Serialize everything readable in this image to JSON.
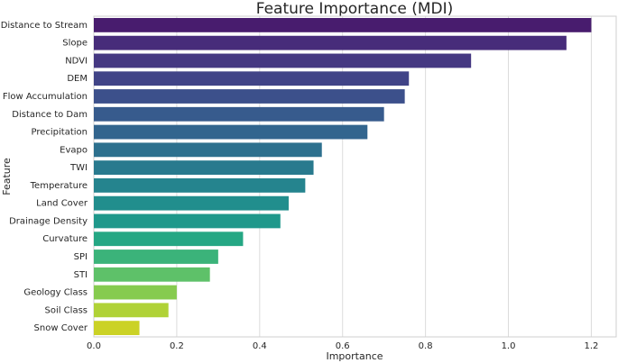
{
  "chart_data": {
    "type": "barh",
    "title": "Feature Importance (MDI)",
    "x_label": "Importance",
    "y_label": "Feature",
    "categories": [
      "Distance to Stream",
      "Slope",
      "NDVI",
      "DEM",
      "Flow Accumulation",
      "Distance to Dam",
      "Precipitation",
      "Evapo",
      "TWI",
      "Temperature",
      "Land Cover",
      "Drainage Density",
      "Curvature",
      "SPI",
      "STI",
      "Geology Class",
      "Soil Class",
      "Snow Cover"
    ],
    "values": [
      1.2,
      1.14,
      0.91,
      0.76,
      0.75,
      0.7,
      0.66,
      0.55,
      0.53,
      0.51,
      0.47,
      0.45,
      0.36,
      0.3,
      0.28,
      0.2,
      0.18,
      0.11
    ],
    "colors": [
      "#481c6e",
      "#472c7a",
      "#453882",
      "#414487",
      "#3c508b",
      "#375b8d",
      "#32658e",
      "#2d708e",
      "#297a8e",
      "#25848e",
      "#218e8d",
      "#1f988b",
      "#25a784",
      "#3bb37a",
      "#5ec169",
      "#86cb4f",
      "#b0d237",
      "#cbd226"
    ],
    "xlim": [
      0,
      1.26
    ],
    "xticks": [
      {
        "value": 0,
        "label": "0.0"
      },
      0.2,
      0.4,
      0.6,
      0.8,
      {
        "value": 1,
        "label": "1.0"
      },
      1.2
    ],
    "grid": true
  }
}
